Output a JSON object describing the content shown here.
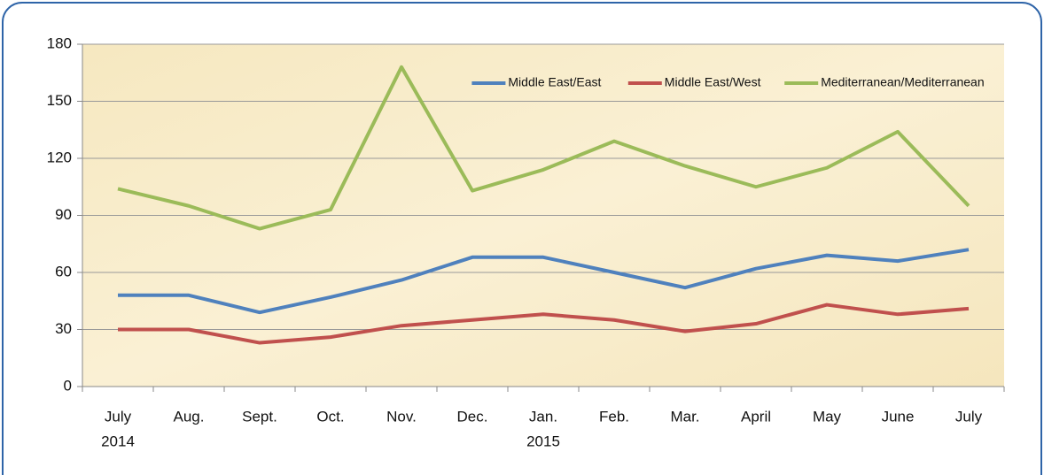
{
  "chart_data": {
    "type": "line",
    "categories": [
      "July",
      "Aug.",
      "Sept.",
      "Oct.",
      "Nov.",
      "Dec.",
      "Jan.",
      "Feb.",
      "Mar.",
      "April",
      "May",
      "June",
      "July"
    ],
    "x_groups": [
      {
        "label": "2014",
        "start": 0
      },
      {
        "label": "2015",
        "start": 6
      }
    ],
    "series": [
      {
        "name": "Middle East/East",
        "color": "#4f81bd",
        "values": [
          48,
          48,
          39,
          47,
          56,
          68,
          68,
          60,
          52,
          62,
          69,
          66,
          72
        ]
      },
      {
        "name": "Middle East/West",
        "color": "#c0504d",
        "values": [
          30,
          30,
          23,
          26,
          32,
          35,
          38,
          35,
          29,
          33,
          43,
          38,
          41
        ]
      },
      {
        "name": "Mediterranean/Mediterranean",
        "color": "#9bbb59",
        "values": [
          104,
          95,
          83,
          93,
          168,
          103,
          114,
          129,
          116,
          105,
          115,
          134,
          95
        ]
      }
    ],
    "ylim": [
      0,
      180
    ],
    "yticks": [
      0,
      30,
      60,
      90,
      120,
      150,
      180
    ],
    "grid": true,
    "legend": "top-right"
  }
}
